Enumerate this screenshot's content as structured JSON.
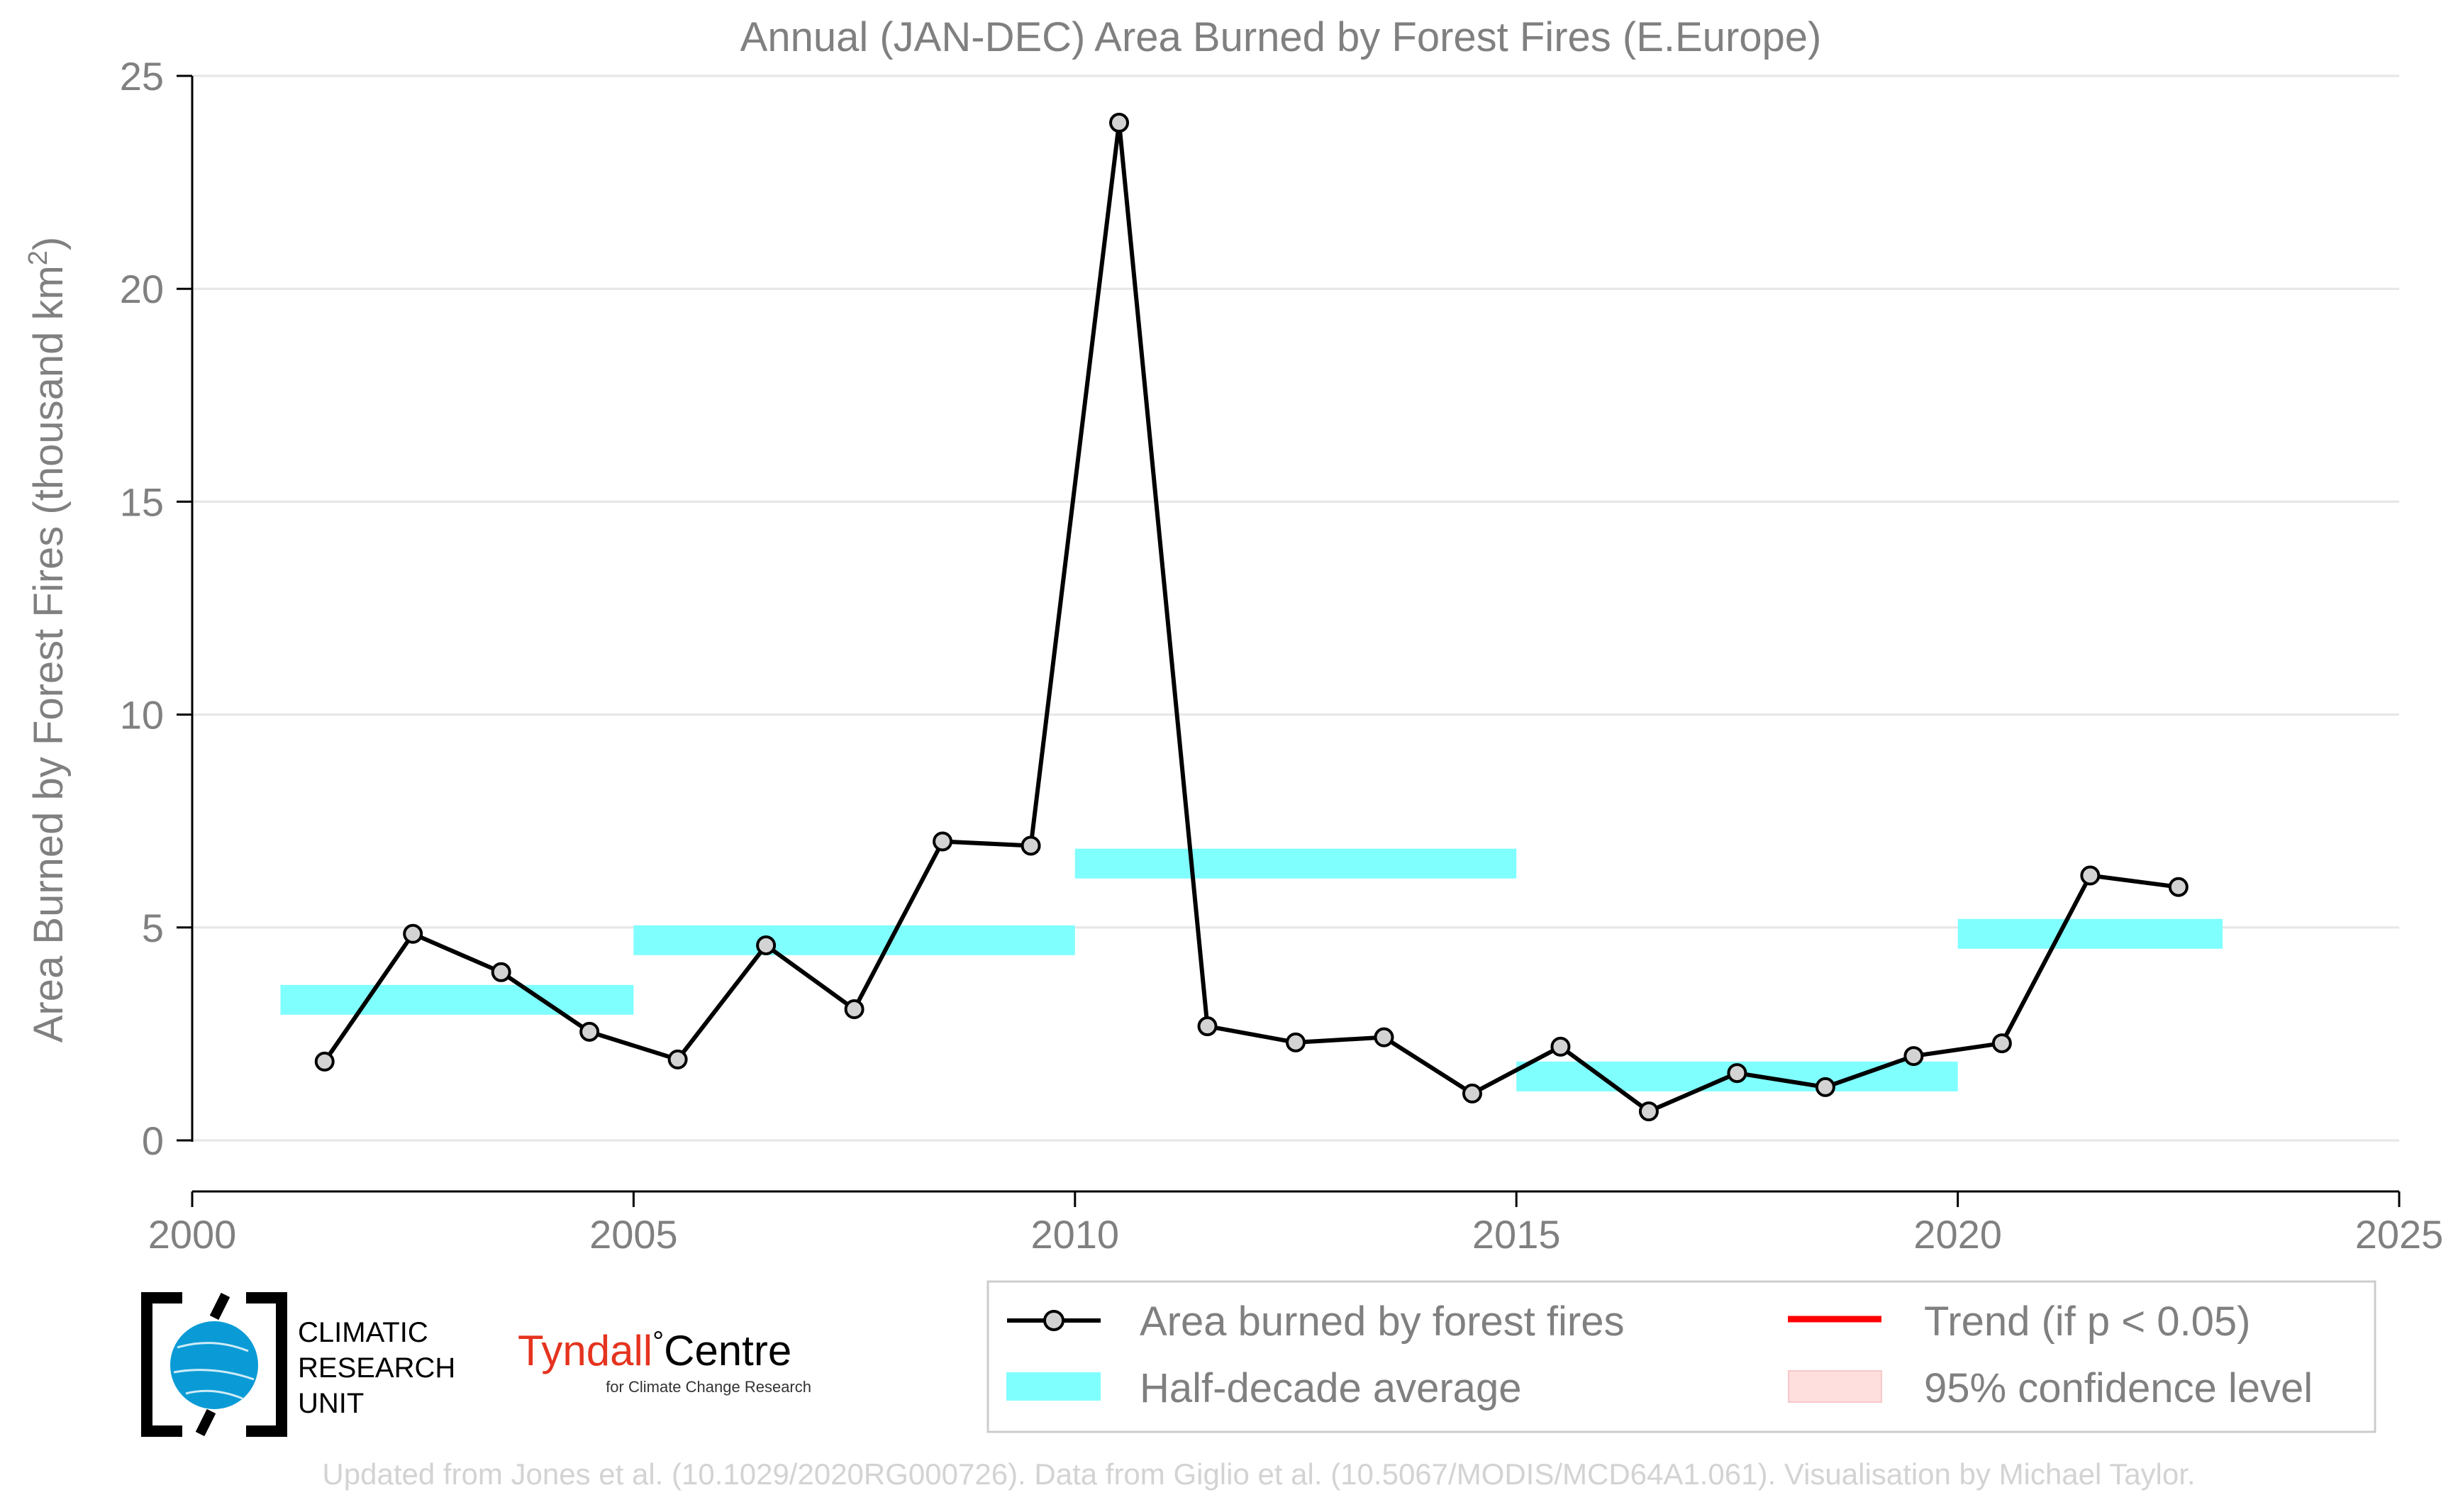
{
  "chart_data": {
    "type": "line",
    "title": "Annual (JAN-DEC) Area Burned by Forest Fires (E.Europe)",
    "ylabel_main": "Area Burned by Forest Fires (thousand km",
    "ylabel_sup": "2",
    "ylabel_end": ")",
    "xlim": [
      2000,
      2025
    ],
    "ylim": [
      -1.2,
      25
    ],
    "x_ticks": [
      2000,
      2005,
      2010,
      2015,
      2020,
      2025
    ],
    "x_tick_labels": [
      "2000",
      "2005",
      "2010",
      "2015",
      "2020",
      "2025"
    ],
    "y_ticks": [
      0,
      5,
      10,
      15,
      20,
      25
    ],
    "y_tick_labels": [
      "0",
      "5",
      "10",
      "15",
      "20",
      "25"
    ],
    "grid": "horizontal",
    "series": [
      {
        "name": "Area burned by forest fires",
        "color": "#000000",
        "x": [
          2001.5,
          2002.5,
          2003.5,
          2004.5,
          2005.5,
          2006.5,
          2007.5,
          2008.5,
          2009.5,
          2010.5,
          2011.5,
          2012.5,
          2013.5,
          2014.5,
          2015.5,
          2016.5,
          2017.5,
          2018.5,
          2019.5,
          2020.5,
          2021.5,
          2022.5
        ],
        "values": [
          1.85,
          4.85,
          3.95,
          2.55,
          1.9,
          4.58,
          3.08,
          7.02,
          6.92,
          23.9,
          2.68,
          2.3,
          2.42,
          1.1,
          2.2,
          0.68,
          1.58,
          1.25,
          1.98,
          2.28,
          6.22,
          5.95
        ]
      }
    ],
    "half_decade_averages": {
      "name": "Half-decade average",
      "color": "#80ffff",
      "segments": [
        {
          "x0": 2001,
          "x1": 2005,
          "value": 3.3
        },
        {
          "x0": 2005,
          "x1": 2010,
          "value": 4.7
        },
        {
          "x0": 2010,
          "x1": 2015,
          "value": 6.5
        },
        {
          "x0": 2015,
          "x1": 2020,
          "value": 1.5
        },
        {
          "x0": 2020,
          "x1": 2023,
          "value": 4.85
        }
      ]
    },
    "legend": {
      "placement": "bottom-right",
      "entries": [
        {
          "label": "Area burned by forest fires",
          "kind": "line-marker",
          "color": "#000000"
        },
        {
          "label": "Trend (if p < 0.05)",
          "kind": "line",
          "color": "#ff0000"
        },
        {
          "label": "Half-decade average",
          "kind": "band",
          "color": "#80ffff"
        },
        {
          "label": "95% confidence level",
          "kind": "patch",
          "color": "#ffdede"
        }
      ]
    }
  },
  "logos": {
    "cru": [
      "CLIMATIC",
      "RESEARCH",
      "UNIT"
    ],
    "tyndall_red": "Tyndall",
    "tyndall_degree": "°",
    "tyndall_black": "Centre",
    "tyndall_sub": "for Climate Change Research"
  },
  "footer": "Updated from Jones et al. (10.1029/2020RG000726). Data from Giglio et al. (10.5067/MODIS/MCD64A1.061). Visualisation by Michael Taylor."
}
